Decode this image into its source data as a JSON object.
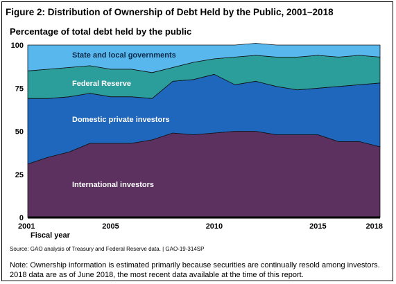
{
  "figure_title": "Figure 2: Distribution of Ownership of Debt Held by the Public, 2001–2018",
  "source": "Source: GAO analysis of Treasury and Federal Reserve data.  |  GAO-19-314SP",
  "note": "Note: Ownership information is estimated primarily because securities are continually resold among investors. 2018 data are as of June 2018, the most recent data available at the time of this report.",
  "chart_data": {
    "type": "area",
    "stacked": true,
    "subtitle": "Percentage of total debt held by the public",
    "xlabel": "Fiscal year",
    "ylabel": "",
    "x": [
      2001,
      2002,
      2003,
      2004,
      2005,
      2006,
      2007,
      2008,
      2009,
      2010,
      2011,
      2012,
      2013,
      2014,
      2015,
      2016,
      2017,
      2018
    ],
    "xticks": [
      "2001",
      "2005",
      "2010",
      "2015",
      "2018"
    ],
    "yticks": [
      "0",
      "25",
      "50",
      "75",
      "100"
    ],
    "xlim": [
      2001,
      2018
    ],
    "ylim": [
      0,
      100
    ],
    "grid": false,
    "legend": "labels inside areas",
    "series": [
      {
        "name": "International investors",
        "color": "#5c3160",
        "values": [
          31,
          35,
          38,
          43,
          43,
          43,
          45,
          49,
          48,
          49,
          50,
          50,
          48,
          48,
          48,
          44,
          44,
          41
        ]
      },
      {
        "name": "Domestic private investors",
        "color": "#1f66bd",
        "values": [
          38,
          34,
          32,
          29,
          27,
          27,
          24,
          30,
          32,
          34,
          27,
          29,
          28,
          26,
          27,
          32,
          33,
          37
        ]
      },
      {
        "name": "Federal Reserve",
        "color": "#2b9e9b",
        "values": [
          16,
          17,
          17,
          16,
          16,
          16,
          15,
          8,
          10,
          9,
          16,
          15,
          17,
          19,
          19,
          17,
          17,
          15
        ]
      },
      {
        "name": "State and local governments",
        "color": "#58b8ee",
        "values": [
          15,
          14,
          13,
          12,
          14,
          14,
          16,
          13,
          10,
          8,
          7,
          7,
          7,
          7,
          6,
          7,
          6,
          7
        ]
      }
    ]
  }
}
